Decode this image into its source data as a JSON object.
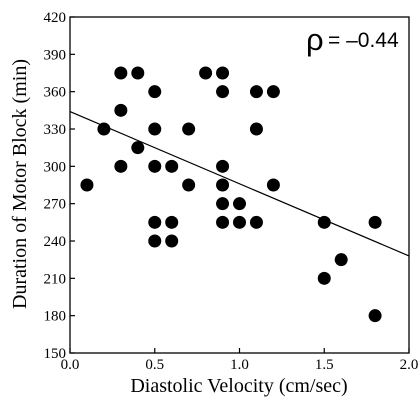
{
  "chart_data": {
    "type": "scatter",
    "xlabel": "Diastolic Velocity (cm/sec)",
    "ylabel": "Duration of Motor Block (min)",
    "xlim": [
      0.0,
      2.0
    ],
    "ylim": [
      150,
      420
    ],
    "xticks": [
      "0.0",
      "0.5",
      "1.0",
      "1.5",
      "2.0"
    ],
    "yticks": [
      "150",
      "180",
      "210",
      "240",
      "270",
      "300",
      "330",
      "360",
      "390",
      "420"
    ],
    "annotation": {
      "symbol": "ρ",
      "text": "= –0.44"
    },
    "grid": false,
    "points": [
      {
        "x": 0.1,
        "y": 285
      },
      {
        "x": 0.2,
        "y": 330
      },
      {
        "x": 0.3,
        "y": 375
      },
      {
        "x": 0.3,
        "y": 345
      },
      {
        "x": 0.3,
        "y": 300
      },
      {
        "x": 0.4,
        "y": 375
      },
      {
        "x": 0.4,
        "y": 315
      },
      {
        "x": 0.5,
        "y": 360
      },
      {
        "x": 0.5,
        "y": 330
      },
      {
        "x": 0.5,
        "y": 300
      },
      {
        "x": 0.5,
        "y": 255
      },
      {
        "x": 0.5,
        "y": 240
      },
      {
        "x": 0.6,
        "y": 300
      },
      {
        "x": 0.6,
        "y": 255
      },
      {
        "x": 0.6,
        "y": 240
      },
      {
        "x": 0.7,
        "y": 330
      },
      {
        "x": 0.7,
        "y": 285
      },
      {
        "x": 0.8,
        "y": 375
      },
      {
        "x": 0.9,
        "y": 375
      },
      {
        "x": 0.9,
        "y": 360
      },
      {
        "x": 0.9,
        "y": 300
      },
      {
        "x": 0.9,
        "y": 285
      },
      {
        "x": 0.9,
        "y": 270
      },
      {
        "x": 0.9,
        "y": 255
      },
      {
        "x": 1.0,
        "y": 270
      },
      {
        "x": 1.0,
        "y": 255
      },
      {
        "x": 1.1,
        "y": 360
      },
      {
        "x": 1.1,
        "y": 330
      },
      {
        "x": 1.1,
        "y": 255
      },
      {
        "x": 1.2,
        "y": 360
      },
      {
        "x": 1.2,
        "y": 285
      },
      {
        "x": 1.5,
        "y": 255
      },
      {
        "x": 1.5,
        "y": 210
      },
      {
        "x": 1.6,
        "y": 225
      },
      {
        "x": 1.8,
        "y": 255
      },
      {
        "x": 1.8,
        "y": 180
      }
    ],
    "regression_line": {
      "x": [
        0.0,
        2.0
      ],
      "y": [
        344,
        228
      ]
    },
    "colors": {
      "points": "#000000",
      "line": "#000000",
      "axes": "#000000"
    }
  }
}
